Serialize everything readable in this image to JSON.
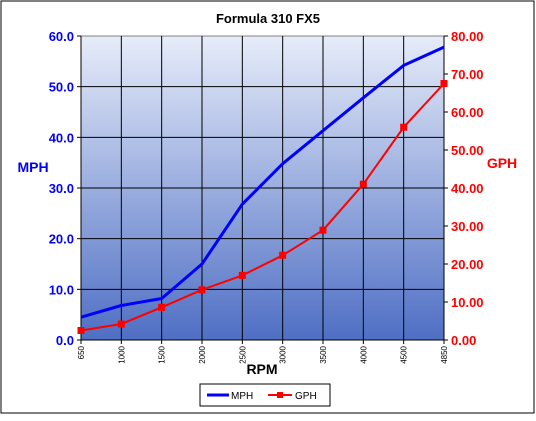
{
  "chart_data": {
    "type": "line",
    "title": "Formula 310 FX5",
    "xlabel": "RPM",
    "x": [
      "650",
      "1000",
      "1500",
      "2000",
      "2500",
      "3000",
      "3500",
      "4000",
      "4500",
      "4850"
    ],
    "y_left": {
      "label": "MPH",
      "ylim": [
        0,
        60
      ],
      "ticks": [
        "0.0",
        "10.0",
        "20.0",
        "30.0",
        "40.0",
        "50.0",
        "60.0"
      ],
      "color": "#0000ff"
    },
    "y_right": {
      "label": "GPH",
      "ylim": [
        0,
        80
      ],
      "ticks": [
        "0.00",
        "10.00",
        "20.00",
        "30.00",
        "40.00",
        "50.00",
        "60.00",
        "70.00",
        "80.00"
      ],
      "color": "#ff0000"
    },
    "series": [
      {
        "name": "MPH",
        "axis": "left",
        "color": "#0000ff",
        "marker": "none",
        "values": [
          4.5,
          6.8,
          8.2,
          15.0,
          26.8,
          34.8,
          41.3,
          47.8,
          54.2,
          57.8
        ]
      },
      {
        "name": "GPH",
        "axis": "right",
        "color": "#ff0000",
        "marker": "square",
        "values": [
          2.5,
          4.2,
          8.6,
          13.2,
          17.0,
          22.3,
          28.9,
          41.0,
          56.0,
          67.5
        ]
      }
    ],
    "grid": true,
    "legend": "bottom",
    "colors": {
      "plot_top": "#e6ecf9",
      "plot_bottom": "#4f6fc4",
      "axis_text_left": "#0000ff",
      "axis_text_right": "#ff0000"
    }
  }
}
